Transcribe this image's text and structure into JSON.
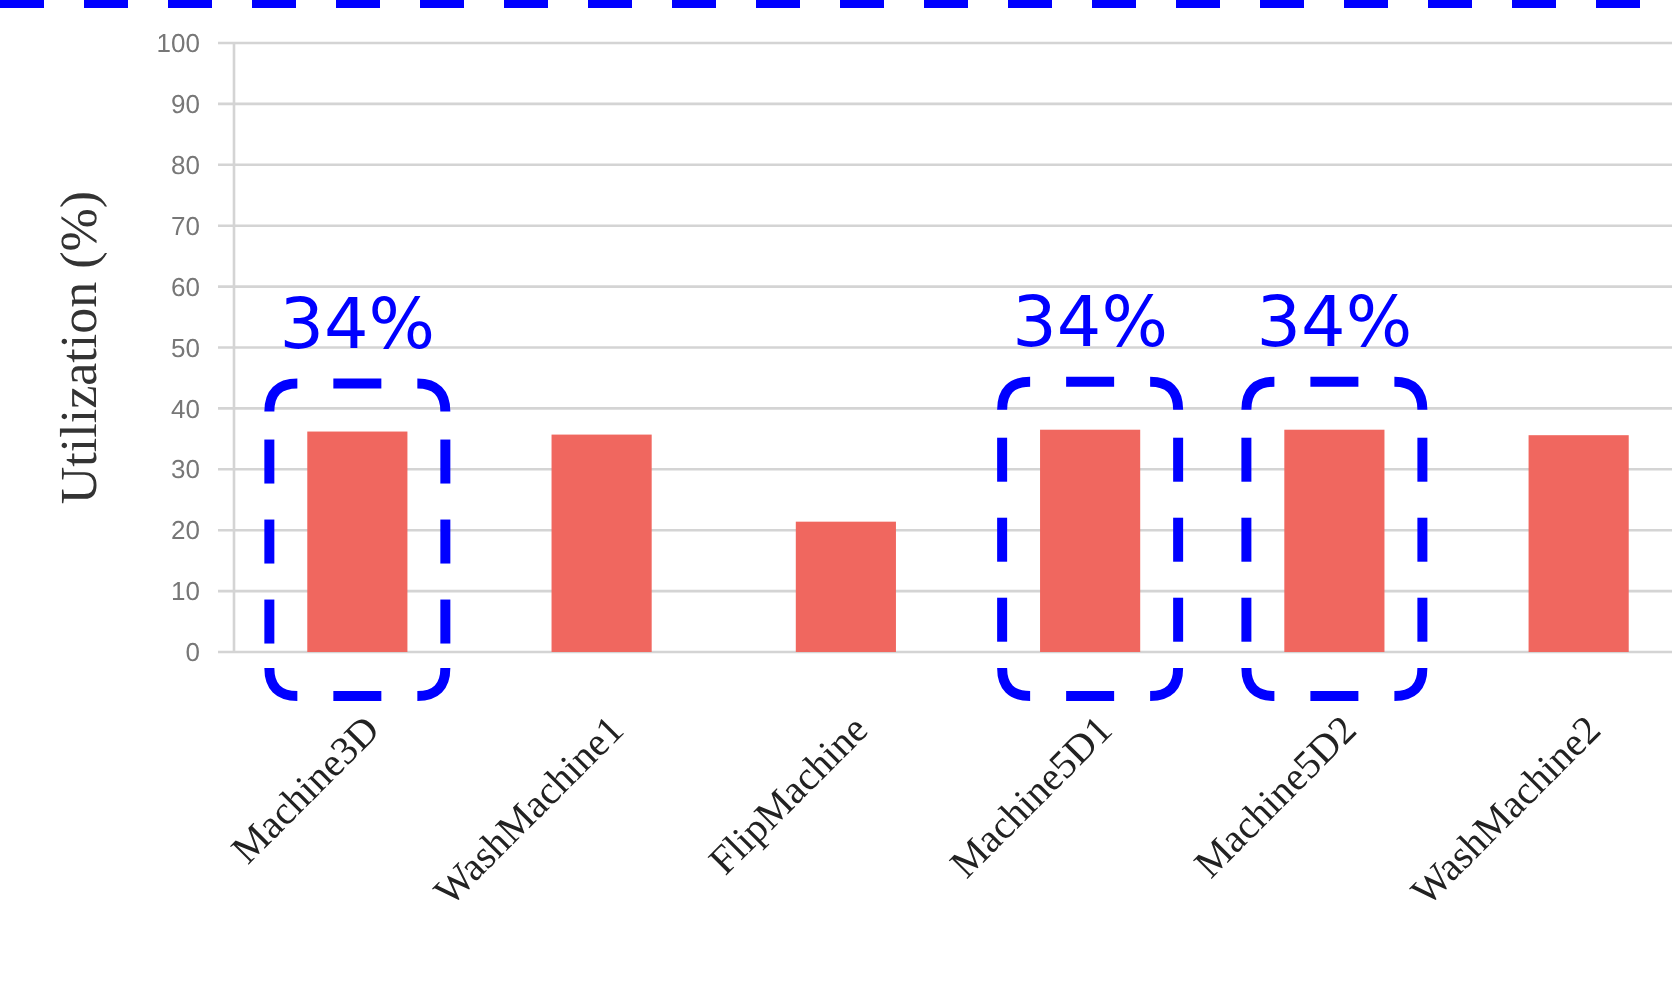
{
  "chart_data": {
    "type": "bar",
    "ylabel": "Utilization (%)",
    "categories": [
      "Machine3D",
      "WashMachine1",
      "FlipMachine",
      "Machine5D1",
      "Machine5D2",
      "WashMachine2"
    ],
    "values": [
      36.2,
      35.7,
      21.4,
      36.5,
      36.5,
      35.6
    ],
    "color": "#f0675f",
    "ylim": [
      0,
      100
    ],
    "yticks": [
      0,
      10,
      20,
      30,
      40,
      50,
      60,
      70,
      80,
      90,
      100
    ],
    "grid": "y",
    "annotations": [
      {
        "text": "34%",
        "x": "Machine3D",
        "y": 36.2
      },
      {
        "text": "34%",
        "x": "Machine5D1",
        "y": 36.5
      },
      {
        "text": "34%",
        "x": "Machine5D2",
        "y": 36.5
      }
    ]
  }
}
